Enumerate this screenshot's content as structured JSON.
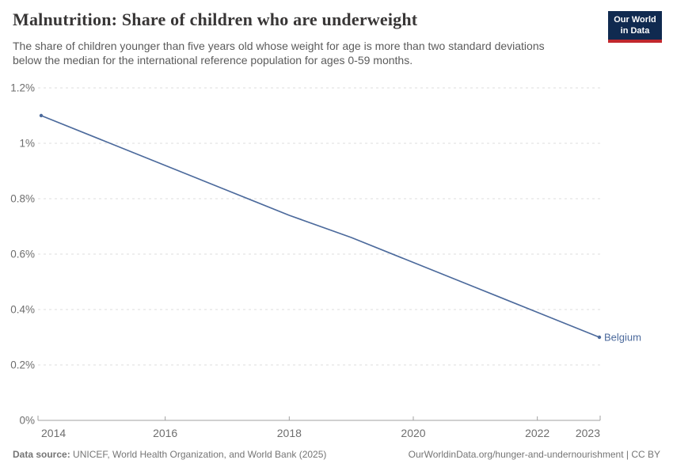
{
  "header": {
    "title": "Malnutrition: Share of children who are underweight",
    "subtitle": "The share of children younger than five years old whose weight for age is more than two standard deviations below the median for the international reference population for ages 0-59 months."
  },
  "logo": {
    "line1": "Our World",
    "line2": "in Data",
    "bg_color": "#102a50",
    "accent_color": "#c1272d"
  },
  "chart_data": {
    "type": "line",
    "title": "Malnutrition: Share of children who are underweight",
    "xlabel": "",
    "ylabel": "",
    "x": [
      2014,
      2015,
      2016,
      2017,
      2018,
      2019,
      2020,
      2021,
      2022,
      2023
    ],
    "series": [
      {
        "name": "Belgium",
        "color": "#4c6a9c",
        "values": [
          1.1,
          1.01,
          0.92,
          0.83,
          0.74,
          0.66,
          0.57,
          0.48,
          0.39,
          0.3
        ]
      }
    ],
    "ylim": [
      0,
      1.2
    ],
    "yticks": [
      {
        "value": 0,
        "label": "0%"
      },
      {
        "value": 0.2,
        "label": "0.2%"
      },
      {
        "value": 0.4,
        "label": "0.4%"
      },
      {
        "value": 0.6,
        "label": "0.6%"
      },
      {
        "value": 0.8,
        "label": "0.8%"
      },
      {
        "value": 1.0,
        "label": "1%"
      },
      {
        "value": 1.2,
        "label": "1.2%"
      }
    ],
    "xticks": [
      {
        "value": 2014,
        "label": "2014",
        "tick": false
      },
      {
        "value": 2016,
        "label": "2016",
        "tick": true
      },
      {
        "value": 2018,
        "label": "2018",
        "tick": true
      },
      {
        "value": 2020,
        "label": "2020",
        "tick": true
      },
      {
        "value": 2022,
        "label": "2022",
        "tick": true
      },
      {
        "value": 2023,
        "label": "2023",
        "tick": false
      }
    ],
    "grid": "horizontal-dashed",
    "legend_position": "end-of-line-label",
    "unit": "%"
  },
  "footer": {
    "datasource_label": "Data source:",
    "datasource_text": " UNICEF, World Health Organization, and World Bank (2025)",
    "rights_text": "OurWorldinData.org/hunger-and-undernourishment | CC BY"
  },
  "colors": {
    "accent_blue": "#4c6a9c",
    "grid_line": "#dedede",
    "axis_line": "#a1a1a1",
    "tick_text": "#6e6e6e",
    "title_text": "#383636",
    "subtitle_text": "#5b5b5b",
    "footer_text": "#757575"
  }
}
